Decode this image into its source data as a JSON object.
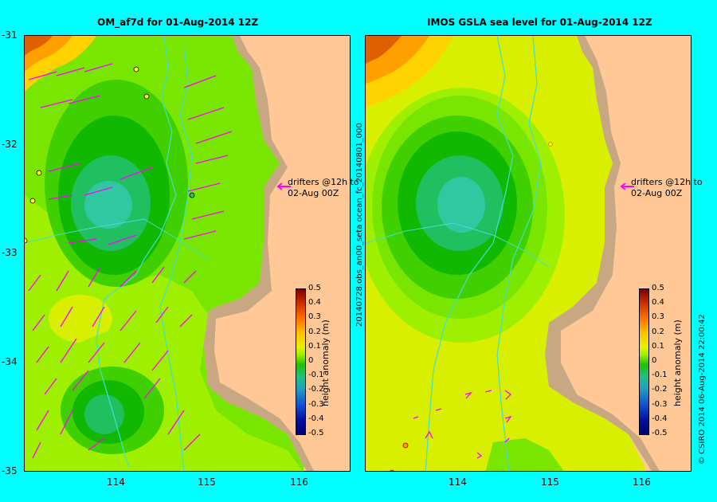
{
  "left_panel": {
    "title": "OM_af7d for 01-Aug-2014 12Z"
  },
  "right_panel": {
    "title": "IMOS GSLA sea level  for 01-Aug-2014 12Z"
  },
  "y_ticks": [
    "-31",
    "-32",
    "-33",
    "-34",
    "-35"
  ],
  "x_ticks": [
    "114",
    "115",
    "116"
  ],
  "drifter_legend": {
    "line1": "drifters @12h to",
    "line2": "02-Aug 00Z"
  },
  "colorbar": {
    "title": "height anomaly (m)",
    "labels": [
      "0.5",
      "0.4",
      "0.3",
      "0.2",
      "0.1",
      "0",
      "-0.1",
      "-0.2",
      "-0.3",
      "-0.4",
      "-0.5"
    ],
    "range": [
      -0.5,
      0.5
    ]
  },
  "side_text": {
    "left": "20140728.obs_an00_seta  ocean_fc_20140801_000",
    "right": "© CSIRO 2014    06-Aug-2014 22:00:42"
  },
  "colors": {
    "background": "#00ffff",
    "land": "#ffc896",
    "shelf": "#c8a882",
    "arrows": "#ff00ff",
    "rivers": "#40e0d0"
  }
}
